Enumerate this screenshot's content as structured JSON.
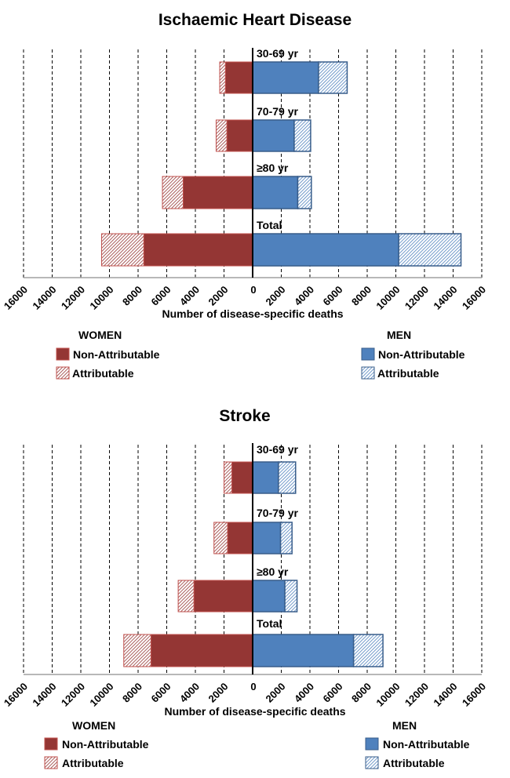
{
  "colors": {
    "women_fill": "#943634",
    "women_edge": "#c0504d",
    "men_fill": "#4f81bd",
    "men_edge": "#385d8a",
    "grid": "#000000",
    "axis": "#a0a0a0"
  },
  "chart_data": [
    {
      "type": "bar",
      "orientation": "horizontal-butterfly",
      "title": "Ischaemic Heart Disease",
      "xlabel": "Number of disease-specific deaths",
      "xlim": [
        -16000,
        16000
      ],
      "xticks": [
        16000,
        14000,
        12000,
        10000,
        8000,
        6000,
        4000,
        2000,
        0,
        2000,
        4000,
        6000,
        8000,
        10000,
        12000,
        14000,
        16000
      ],
      "grid": true,
      "categories": [
        "30-69 yr",
        "70-79 yr",
        "≥80 yr",
        "Total"
      ],
      "series": [
        {
          "name": "Women Non-Attributable",
          "side": "left",
          "values": [
            1900,
            1800,
            4850,
            7600
          ]
        },
        {
          "name": "Women Attributable",
          "side": "left",
          "values": [
            400,
            750,
            1450,
            2950
          ]
        },
        {
          "name": "Men Non-Attributable",
          "side": "right",
          "values": [
            4600,
            2900,
            3150,
            10200
          ]
        },
        {
          "name": "Men Attributable",
          "side": "right",
          "values": [
            2000,
            1150,
            950,
            4350
          ]
        }
      ],
      "legend": {
        "women": {
          "title": "WOMEN",
          "items": [
            "Non-Attributable",
            "Attributable"
          ],
          "placement": "bottom-left"
        },
        "men": {
          "title": "MEN",
          "items": [
            "Non-Attributable",
            "Attributable"
          ],
          "placement": "bottom-right"
        }
      }
    },
    {
      "type": "bar",
      "orientation": "horizontal-butterfly",
      "title": "Stroke",
      "xlabel": "Number of disease-specific deaths",
      "xlim": [
        -16000,
        16000
      ],
      "xticks": [
        16000,
        14000,
        12000,
        10000,
        8000,
        6000,
        4000,
        2000,
        0,
        2000,
        4000,
        6000,
        8000,
        10000,
        12000,
        14000,
        16000
      ],
      "grid": true,
      "categories": [
        "30-69 yr",
        "70-79 yr",
        "≥80 yr",
        "Total"
      ],
      "series": [
        {
          "name": "Women Non-Attributable",
          "side": "left",
          "values": [
            1450,
            1750,
            4100,
            7100
          ]
        },
        {
          "name": "Women Attributable",
          "side": "left",
          "values": [
            550,
            950,
            1100,
            1900
          ]
        },
        {
          "name": "Men Non-Attributable",
          "side": "right",
          "values": [
            1800,
            1950,
            2250,
            7050
          ]
        },
        {
          "name": "Men Attributable",
          "side": "right",
          "values": [
            1200,
            800,
            850,
            2050
          ]
        }
      ],
      "legend": {
        "women": {
          "title": "WOMEN",
          "items": [
            "Non-Attributable",
            "Attributable"
          ],
          "placement": "bottom-left"
        },
        "men": {
          "title": "MEN",
          "items": [
            "Non-Attributable",
            "Attributable"
          ],
          "placement": "bottom-right"
        }
      }
    }
  ]
}
